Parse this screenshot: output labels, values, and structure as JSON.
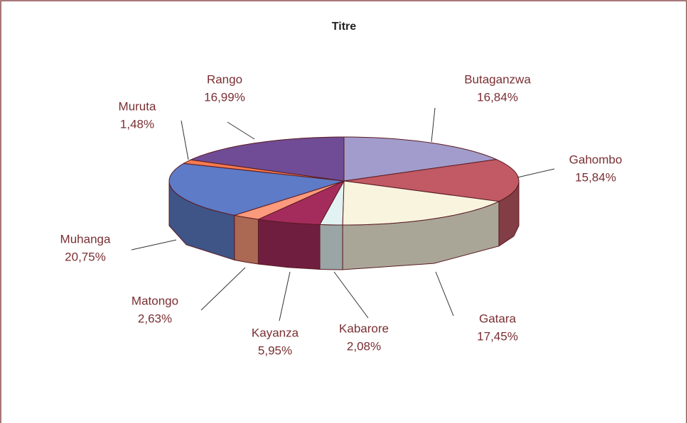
{
  "chart_data": {
    "type": "pie3d",
    "title": "Titre",
    "categories": [
      "Butaganzwa",
      "Gahombo",
      "Gatara",
      "Kabarore",
      "Kayanza",
      "Matongo",
      "Muhanga",
      "Muruta",
      "Rango"
    ],
    "values": [
      16.84,
      15.84,
      17.45,
      2.08,
      5.95,
      2.63,
      20.75,
      1.48,
      16.99
    ],
    "value_labels": [
      "16,84%",
      "15,84%",
      "17,45%",
      "2,08%",
      "5,95%",
      "2,63%",
      "20,75%",
      "1,48%",
      "16,99%"
    ],
    "colors": [
      "#a29ccc",
      "#c15a64",
      "#f8f4de",
      "#e2f2f2",
      "#a42c5c",
      "#fb9a7c",
      "#5d7bc6",
      "#f47a4e",
      "#6f4c95"
    ]
  }
}
